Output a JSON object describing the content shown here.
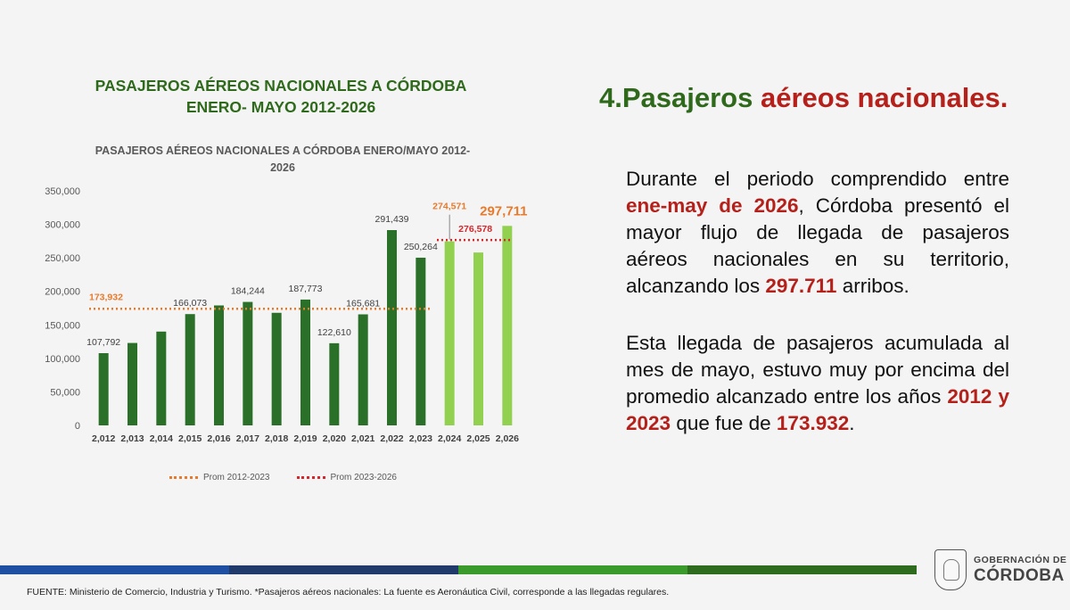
{
  "slide": {
    "left_title_line1": "PASAJEROS AÉREOS NACIONALES A CÓRDOBA",
    "left_title_line2": "ENERO- MAYO 2012-2026",
    "heading_prefix": "4.Pasajeros ",
    "heading_accent": "aéreos nacionales.",
    "para1": {
      "t1": "Durante el periodo comprendido entre ",
      "b1": "ene-may de 2026",
      "t2": ", Córdoba presentó el mayor flujo de llegada de pasajeros aéreos nacionales en su territorio, alcanzando los ",
      "b2": "297.711",
      "t3": " arribos."
    },
    "para2": {
      "t1": "Esta llegada de pasajeros acumulada al mes de mayo, estuvo muy por encima del promedio alcanzado entre los años ",
      "b1": "2012 y 2023",
      "t2": " que fue de ",
      "b2": "173.932",
      "t3": "."
    },
    "source": "FUENTE: Ministerio de Comercio, Industria y Turismo. *Pasajeros aéreos nacionales: La fuente es Aeronáutica Civil, corresponde a las llegadas regulares.",
    "logo_small": "GOBERNACIÓN DE",
    "logo_big": "CÓRDOBA",
    "strip_colors": [
      "#1f4fa3",
      "#1f3a6b",
      "#3a9a2c",
      "#2e6b1e"
    ]
  },
  "chart_data": {
    "type": "bar",
    "title_line1": "PASAJEROS AÉREOS NACIONALES A CÓRDOBA ENERO/MAYO 2012-",
    "title_line2": "2026",
    "categories": [
      "2,012",
      "2,013",
      "2,014",
      "2,015",
      "2,016",
      "2,017",
      "2,018",
      "2,019",
      "2,020",
      "2,021",
      "2,022",
      "2,023",
      "2,024",
      "2,025",
      "2,026"
    ],
    "values": [
      107792,
      123000,
      140000,
      166073,
      179000,
      184244,
      168000,
      187773,
      122610,
      165681,
      291439,
      250264,
      274571,
      258000,
      297711
    ],
    "data_labels": [
      "107,792",
      "",
      "",
      "166,073",
      "",
      "184,244",
      "",
      "187,773",
      "122,610",
      "165,681",
      "291,439",
      "250,264",
      "274,571",
      "",
      "297,711"
    ],
    "bar_colors": [
      "#2a7028",
      "#2a7028",
      "#2a7028",
      "#2a7028",
      "#2a7028",
      "#2a7028",
      "#2a7028",
      "#2a7028",
      "#2a7028",
      "#2a7028",
      "#2a7028",
      "#2a7028",
      "#92d050",
      "#92d050",
      "#92d050"
    ],
    "label_colors": [
      "#404040",
      "#404040",
      "#404040",
      "#404040",
      "#404040",
      "#404040",
      "#404040",
      "#404040",
      "#404040",
      "#404040",
      "#404040",
      "#404040",
      "#e87a2c",
      "#404040",
      "#e87a2c"
    ],
    "yticks": [
      0,
      50000,
      100000,
      150000,
      200000,
      250000,
      300000,
      350000
    ],
    "ytick_labels": [
      "0",
      "50,000",
      "100,000",
      "150,000",
      "200,000",
      "250,000",
      "300,000",
      "350,000"
    ],
    "ylim": [
      0,
      350000
    ],
    "series": [
      {
        "name": "Prom 2012-2023",
        "value": 173932,
        "label": "173,932",
        "color": "#e87a2c",
        "from": 0,
        "to": 11
      },
      {
        "name": "Prom 2023-2026",
        "value": 276578,
        "label": "276,578",
        "color": "#d8262b",
        "from": 12,
        "to": 14
      }
    ],
    "legend": "bottom"
  }
}
